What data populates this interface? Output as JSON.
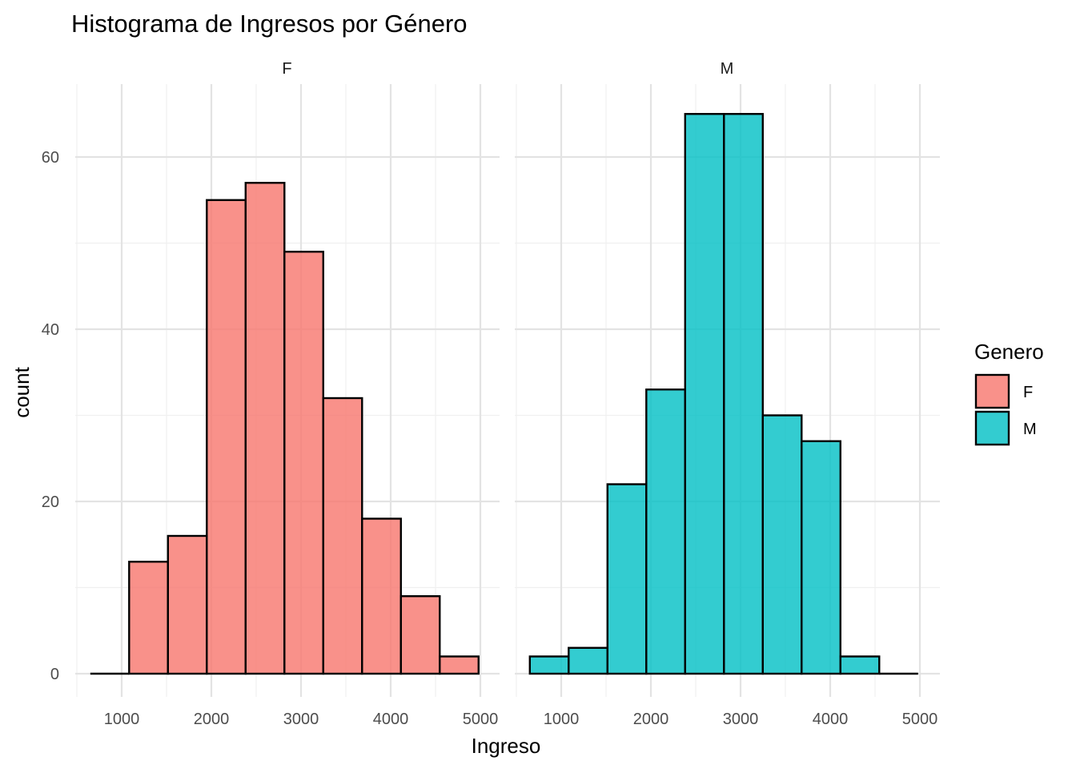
{
  "chart_data": {
    "type": "bar",
    "subtype": "histogram-faceted",
    "title": "Histograma de Ingresos por Género",
    "xlabel": "Ingreso",
    "ylabel": "count",
    "xlim": [
      500,
      5100
    ],
    "ylim": [
      -3,
      68
    ],
    "x_ticks": [
      1000,
      2000,
      3000,
      4000,
      5000
    ],
    "y_ticks": [
      0,
      20,
      40,
      60
    ],
    "grid": true,
    "legend": {
      "title": "Genero",
      "position": "right",
      "entries": [
        "F",
        "M"
      ]
    },
    "colors": {
      "F": "#F8766D",
      "M": "#00BFC4",
      "bar_outline": "#000000",
      "grid_major": "#e3e3e3",
      "grid_minor": "#f0f0f0"
    },
    "bin_edges": [
      650,
      1083,
      1516,
      1949,
      2382,
      2815,
      3248,
      3681,
      4114,
      4547,
      4980
    ],
    "series": [
      {
        "name": "F",
        "facet": "F",
        "values": [
          0,
          13,
          16,
          55,
          57,
          49,
          32,
          18,
          9,
          2
        ]
      },
      {
        "name": "M",
        "facet": "M",
        "values": [
          2,
          3,
          22,
          33,
          65,
          65,
          30,
          27,
          2,
          0
        ]
      }
    ]
  }
}
